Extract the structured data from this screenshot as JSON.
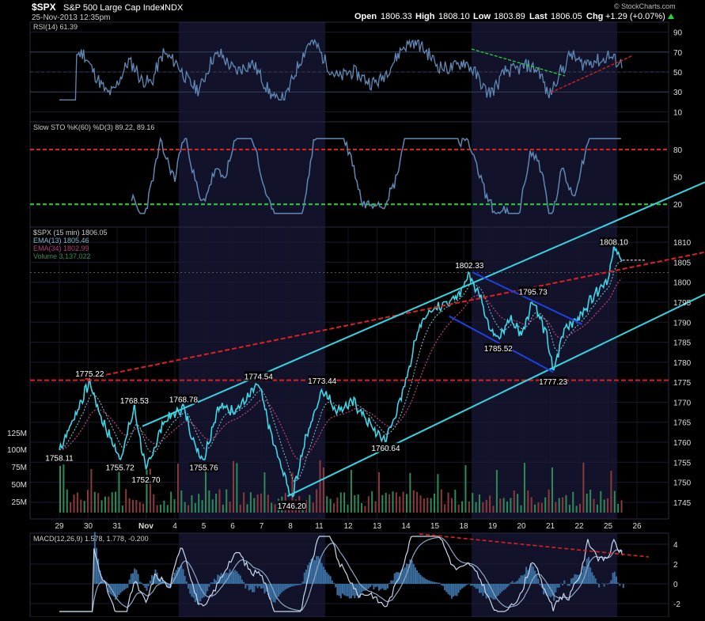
{
  "header": {
    "symbol": "$SPX",
    "name": "S&P 500 Large Cap Index",
    "exchange": "INDX",
    "datetime": "25-Nov-2013 12:35pm",
    "open_label": "Open",
    "open": "1806.33",
    "high_label": "High",
    "high": "1808.10",
    "low_label": "Low",
    "low": "1803.89",
    "last_label": "Last",
    "last": "1806.05",
    "chg_label": "Chg",
    "chg": "+1.29 (+0.07%)",
    "brand": "© StockCharts.com"
  },
  "colors": {
    "background": "#000000",
    "shade": "#12122a",
    "price": "#3fd6e6",
    "ema13": "#7fb8c8",
    "ema34": "#b0407a",
    "channel": "#33d7e3",
    "red_line": "#e02020",
    "green_line": "#26d43a",
    "blue_channel": "#1f3fe0",
    "indicator": "#5f88b4",
    "volume_up": "#2e8b57",
    "volume_down": "#8b3a3a"
  },
  "chart_data": [
    {
      "type": "line",
      "panel": "rsi",
      "title": "RSI(14) 61.39",
      "ylim": [
        0,
        100
      ],
      "y_ticks": [
        "90",
        "70",
        "50",
        "30",
        "10"
      ]
    },
    {
      "type": "line",
      "panel": "stochastic",
      "title": "Slow STO %K(60) %D(3) 89.22, 89.16",
      "ylim": [
        0,
        100
      ],
      "y_ticks": [
        "80",
        "50",
        "20"
      ],
      "reference_lines": [
        80,
        20
      ]
    },
    {
      "type": "line",
      "panel": "price",
      "title": "$SPX (15 min) 1806.05",
      "legend": [
        "EMA(13) 1805.46",
        "EMA(34) 1802.99",
        "Volume 3,137,022"
      ],
      "x_ticks": [
        "29",
        "30",
        "31",
        "Nov",
        "4",
        "5",
        "6",
        "7",
        "8",
        "11",
        "12",
        "13",
        "14",
        "15",
        "18",
        "19",
        "20",
        "21",
        "22",
        "25",
        "26"
      ],
      "y_ticks": [
        "1810",
        "1805",
        "1800",
        "1795",
        "1790",
        "1785",
        "1780",
        "1775",
        "1770",
        "1765",
        "1760",
        "1755",
        "1750",
        "1745"
      ],
      "ylim": [
        1743,
        1812
      ],
      "volume_ticks": [
        "125M",
        "100M",
        "75M",
        "50M",
        "25M"
      ],
      "anchors": [
        {
          "day": 0.0,
          "price": 1758.11
        },
        {
          "day": 0.5,
          "price": 1766
        },
        {
          "day": 1.05,
          "price": 1775.22
        },
        {
          "day": 1.4,
          "price": 1767
        },
        {
          "day": 2.1,
          "price": 1755.72
        },
        {
          "day": 2.6,
          "price": 1768.53
        },
        {
          "day": 3.0,
          "price": 1752.7
        },
        {
          "day": 3.6,
          "price": 1765
        },
        {
          "day": 4.3,
          "price": 1768.78
        },
        {
          "day": 4.7,
          "price": 1759
        },
        {
          "day": 5.0,
          "price": 1755.76
        },
        {
          "day": 5.5,
          "price": 1769
        },
        {
          "day": 6.0,
          "price": 1768
        },
        {
          "day": 6.4,
          "price": 1770
        },
        {
          "day": 6.9,
          "price": 1774.54
        },
        {
          "day": 7.4,
          "price": 1760
        },
        {
          "day": 8.05,
          "price": 1746.2
        },
        {
          "day": 8.5,
          "price": 1760
        },
        {
          "day": 9.1,
          "price": 1773.44
        },
        {
          "day": 9.6,
          "price": 1768
        },
        {
          "day": 10.2,
          "price": 1770
        },
        {
          "day": 11.0,
          "price": 1762
        },
        {
          "day": 11.3,
          "price": 1760.64
        },
        {
          "day": 11.8,
          "price": 1770
        },
        {
          "day": 12.5,
          "price": 1790
        },
        {
          "day": 13.0,
          "price": 1794
        },
        {
          "day": 13.6,
          "price": 1795
        },
        {
          "day": 14.0,
          "price": 1799
        },
        {
          "day": 14.2,
          "price": 1802.33
        },
        {
          "day": 14.6,
          "price": 1796
        },
        {
          "day": 14.9,
          "price": 1789
        },
        {
          "day": 15.2,
          "price": 1785.52
        },
        {
          "day": 15.6,
          "price": 1791
        },
        {
          "day": 16.0,
          "price": 1787
        },
        {
          "day": 16.4,
          "price": 1795.73
        },
        {
          "day": 16.9,
          "price": 1786
        },
        {
          "day": 17.1,
          "price": 1777.23
        },
        {
          "day": 17.5,
          "price": 1789
        },
        {
          "day": 18.0,
          "price": 1791
        },
        {
          "day": 18.5,
          "price": 1797
        },
        {
          "day": 19.0,
          "price": 1801
        },
        {
          "day": 19.2,
          "price": 1808.1
        },
        {
          "day": 19.5,
          "price": 1806.05
        }
      ],
      "annotations": [
        "1775.22",
        "1768.53",
        "1768.78",
        "1774.54",
        "1773.44",
        "1802.33",
        "1795.73",
        "1808.10",
        "1758.11",
        "1755.72",
        "1752.70",
        "1755.76",
        "1746.20",
        "1760.64",
        "1785.52",
        "1777.23"
      ]
    },
    {
      "type": "line",
      "panel": "macd",
      "title": "MACD(12,26,9) 1.578, 1.778, -0.200",
      "y_ticks": [
        "4",
        "2",
        "0",
        "-2"
      ],
      "ylim": [
        -3,
        5
      ]
    }
  ]
}
